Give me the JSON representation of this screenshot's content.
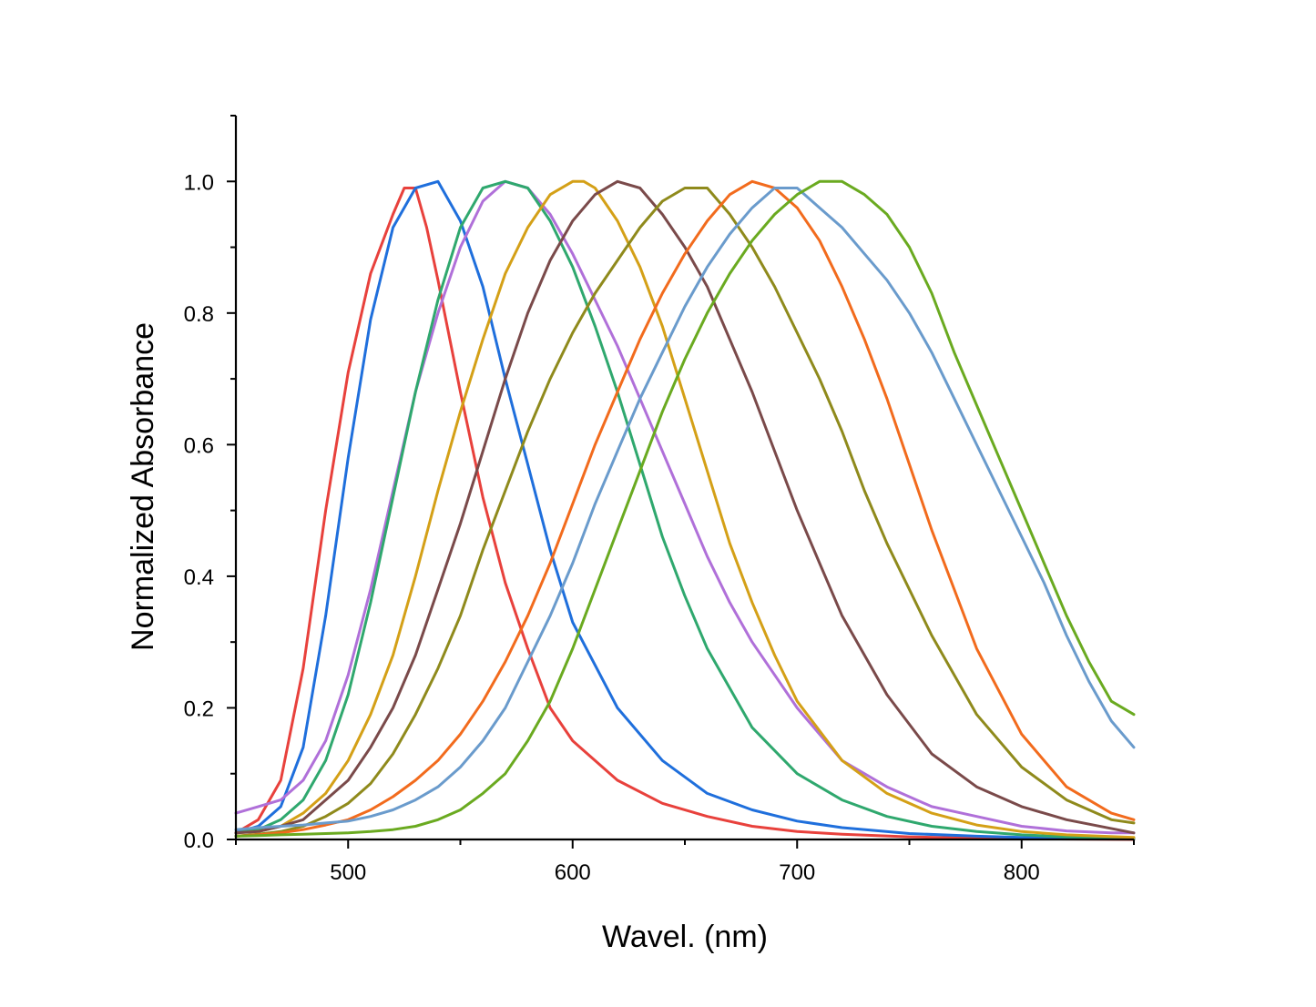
{
  "chart_data": {
    "type": "line",
    "xlabel": "Wavel. (nm)",
    "ylabel": "Normalized Absorbance",
    "xlim": [
      450,
      850
    ],
    "ylim": [
      0,
      1.1
    ],
    "x_ticks": [
      500,
      600,
      700,
      800
    ],
    "x_minor_ticks": [
      450,
      550,
      650,
      750,
      850
    ],
    "y_ticks": [
      0.0,
      0.2,
      0.4,
      0.6,
      0.8,
      1.0
    ],
    "y_tick_labels": [
      "0.0",
      "0.2",
      "0.4",
      "0.6",
      "0.8",
      "1.0"
    ],
    "y_minor_ticks": [
      0.1,
      0.3,
      0.5,
      0.7,
      0.9,
      1.1
    ],
    "grid": false,
    "legend": "none",
    "series": [
      {
        "color": "#e8413c",
        "x": [
          450,
          460,
          470,
          480,
          490,
          500,
          510,
          520,
          525,
          530,
          535,
          540,
          550,
          560,
          570,
          580,
          590,
          600,
          620,
          640,
          660,
          680,
          700,
          720,
          750,
          780,
          800,
          850
        ],
        "y": [
          0.01,
          0.03,
          0.09,
          0.26,
          0.5,
          0.71,
          0.86,
          0.95,
          0.99,
          0.99,
          0.93,
          0.85,
          0.68,
          0.52,
          0.39,
          0.29,
          0.2,
          0.15,
          0.09,
          0.055,
          0.035,
          0.02,
          0.012,
          0.008,
          0.004,
          0.002,
          0.001,
          0.0
        ]
      },
      {
        "color": "#1f6fdc",
        "x": [
          450,
          460,
          470,
          480,
          490,
          500,
          510,
          520,
          530,
          540,
          550,
          560,
          570,
          580,
          590,
          600,
          620,
          640,
          660,
          680,
          700,
          720,
          750,
          780,
          800,
          850
        ],
        "y": [
          0.01,
          0.02,
          0.05,
          0.14,
          0.34,
          0.58,
          0.79,
          0.93,
          0.99,
          1.0,
          0.94,
          0.84,
          0.7,
          0.57,
          0.44,
          0.33,
          0.2,
          0.12,
          0.07,
          0.045,
          0.028,
          0.018,
          0.009,
          0.005,
          0.003,
          0.001
        ]
      },
      {
        "color": "#b070d9",
        "x": [
          450,
          460,
          470,
          480,
          490,
          500,
          510,
          520,
          530,
          540,
          550,
          560,
          570,
          580,
          590,
          600,
          610,
          620,
          630,
          640,
          650,
          660,
          670,
          680,
          690,
          700,
          710,
          720,
          740,
          760,
          780,
          800,
          820,
          840,
          850
        ],
        "y": [
          0.04,
          0.05,
          0.06,
          0.09,
          0.15,
          0.25,
          0.38,
          0.53,
          0.68,
          0.8,
          0.9,
          0.97,
          1.0,
          0.99,
          0.95,
          0.89,
          0.82,
          0.75,
          0.67,
          0.59,
          0.51,
          0.43,
          0.36,
          0.3,
          0.25,
          0.2,
          0.16,
          0.12,
          0.08,
          0.05,
          0.035,
          0.02,
          0.013,
          0.01,
          0.01
        ]
      },
      {
        "color": "#2fa86e",
        "x": [
          450,
          460,
          470,
          480,
          490,
          500,
          510,
          520,
          530,
          540,
          550,
          560,
          570,
          580,
          590,
          600,
          610,
          620,
          630,
          640,
          650,
          660,
          680,
          700,
          720,
          740,
          760,
          780,
          800,
          820,
          850
        ],
        "y": [
          0.01,
          0.015,
          0.03,
          0.06,
          0.12,
          0.22,
          0.36,
          0.52,
          0.68,
          0.82,
          0.93,
          0.99,
          1.0,
          0.99,
          0.94,
          0.87,
          0.78,
          0.68,
          0.57,
          0.46,
          0.37,
          0.29,
          0.17,
          0.1,
          0.06,
          0.035,
          0.02,
          0.012,
          0.007,
          0.004,
          0.002
        ]
      },
      {
        "color": "#d4a017",
        "x": [
          450,
          460,
          470,
          480,
          490,
          500,
          510,
          520,
          530,
          540,
          550,
          560,
          570,
          580,
          590,
          600,
          605,
          610,
          620,
          630,
          640,
          650,
          660,
          670,
          680,
          690,
          700,
          720,
          740,
          760,
          780,
          800,
          820,
          850
        ],
        "y": [
          0.01,
          0.012,
          0.02,
          0.04,
          0.07,
          0.12,
          0.19,
          0.28,
          0.4,
          0.53,
          0.65,
          0.76,
          0.86,
          0.93,
          0.98,
          1.0,
          1.0,
          0.99,
          0.94,
          0.87,
          0.78,
          0.67,
          0.56,
          0.45,
          0.36,
          0.28,
          0.21,
          0.12,
          0.07,
          0.04,
          0.022,
          0.012,
          0.007,
          0.003
        ]
      },
      {
        "color": "#7a4a4a",
        "x": [
          450,
          460,
          470,
          480,
          490,
          500,
          510,
          520,
          530,
          540,
          550,
          560,
          570,
          580,
          590,
          600,
          610,
          620,
          630,
          640,
          650,
          660,
          670,
          680,
          690,
          700,
          710,
          720,
          740,
          760,
          780,
          800,
          820,
          850
        ],
        "y": [
          0.01,
          0.012,
          0.02,
          0.03,
          0.06,
          0.09,
          0.14,
          0.2,
          0.28,
          0.38,
          0.48,
          0.59,
          0.7,
          0.8,
          0.88,
          0.94,
          0.98,
          1.0,
          0.99,
          0.95,
          0.9,
          0.84,
          0.76,
          0.68,
          0.59,
          0.5,
          0.42,
          0.34,
          0.22,
          0.13,
          0.08,
          0.05,
          0.03,
          0.01
        ]
      },
      {
        "color": "#8f8a1c",
        "x": [
          450,
          460,
          470,
          480,
          490,
          500,
          510,
          520,
          530,
          540,
          550,
          560,
          570,
          580,
          590,
          600,
          610,
          620,
          630,
          640,
          650,
          660,
          670,
          680,
          690,
          700,
          710,
          720,
          730,
          740,
          760,
          780,
          800,
          820,
          840,
          850
        ],
        "y": [
          0.005,
          0.008,
          0.012,
          0.02,
          0.035,
          0.055,
          0.085,
          0.13,
          0.19,
          0.26,
          0.34,
          0.44,
          0.53,
          0.62,
          0.7,
          0.77,
          0.83,
          0.88,
          0.93,
          0.97,
          0.99,
          0.99,
          0.95,
          0.9,
          0.84,
          0.77,
          0.7,
          0.62,
          0.53,
          0.45,
          0.31,
          0.19,
          0.11,
          0.06,
          0.03,
          0.025
        ]
      },
      {
        "color": "#f26b1d",
        "x": [
          450,
          460,
          470,
          480,
          490,
          500,
          510,
          520,
          530,
          540,
          550,
          560,
          570,
          580,
          590,
          600,
          610,
          620,
          630,
          640,
          650,
          660,
          670,
          680,
          690,
          700,
          710,
          720,
          730,
          740,
          750,
          760,
          770,
          780,
          800,
          820,
          840,
          850
        ],
        "y": [
          0.005,
          0.007,
          0.01,
          0.015,
          0.022,
          0.03,
          0.045,
          0.065,
          0.09,
          0.12,
          0.16,
          0.21,
          0.27,
          0.34,
          0.42,
          0.51,
          0.6,
          0.68,
          0.76,
          0.83,
          0.89,
          0.94,
          0.98,
          1.0,
          0.99,
          0.96,
          0.91,
          0.84,
          0.76,
          0.67,
          0.57,
          0.47,
          0.38,
          0.29,
          0.16,
          0.08,
          0.04,
          0.03
        ]
      },
      {
        "color": "#6a9bcc",
        "x": [
          450,
          460,
          470,
          480,
          490,
          500,
          510,
          520,
          530,
          540,
          550,
          560,
          570,
          580,
          590,
          600,
          610,
          620,
          630,
          640,
          650,
          660,
          670,
          680,
          690,
          700,
          710,
          720,
          730,
          740,
          750,
          760,
          770,
          780,
          790,
          800,
          810,
          820,
          830,
          840,
          850
        ],
        "y": [
          0.015,
          0.018,
          0.02,
          0.022,
          0.025,
          0.028,
          0.035,
          0.045,
          0.06,
          0.08,
          0.11,
          0.15,
          0.2,
          0.27,
          0.34,
          0.42,
          0.51,
          0.59,
          0.67,
          0.74,
          0.81,
          0.87,
          0.92,
          0.96,
          0.99,
          0.99,
          0.96,
          0.93,
          0.89,
          0.85,
          0.8,
          0.74,
          0.67,
          0.6,
          0.53,
          0.46,
          0.39,
          0.31,
          0.24,
          0.18,
          0.14
        ]
      },
      {
        "color": "#6aaa20",
        "x": [
          450,
          460,
          470,
          480,
          490,
          500,
          510,
          520,
          530,
          540,
          550,
          560,
          570,
          580,
          590,
          600,
          610,
          620,
          630,
          640,
          650,
          660,
          670,
          680,
          690,
          700,
          710,
          720,
          730,
          740,
          750,
          760,
          770,
          780,
          790,
          800,
          810,
          820,
          830,
          840,
          850
        ],
        "y": [
          0.005,
          0.006,
          0.007,
          0.008,
          0.009,
          0.01,
          0.012,
          0.015,
          0.02,
          0.03,
          0.045,
          0.07,
          0.1,
          0.15,
          0.21,
          0.29,
          0.38,
          0.47,
          0.56,
          0.65,
          0.73,
          0.8,
          0.86,
          0.91,
          0.95,
          0.98,
          1.0,
          1.0,
          0.98,
          0.95,
          0.9,
          0.83,
          0.74,
          0.66,
          0.58,
          0.5,
          0.42,
          0.34,
          0.27,
          0.21,
          0.19
        ]
      }
    ]
  }
}
